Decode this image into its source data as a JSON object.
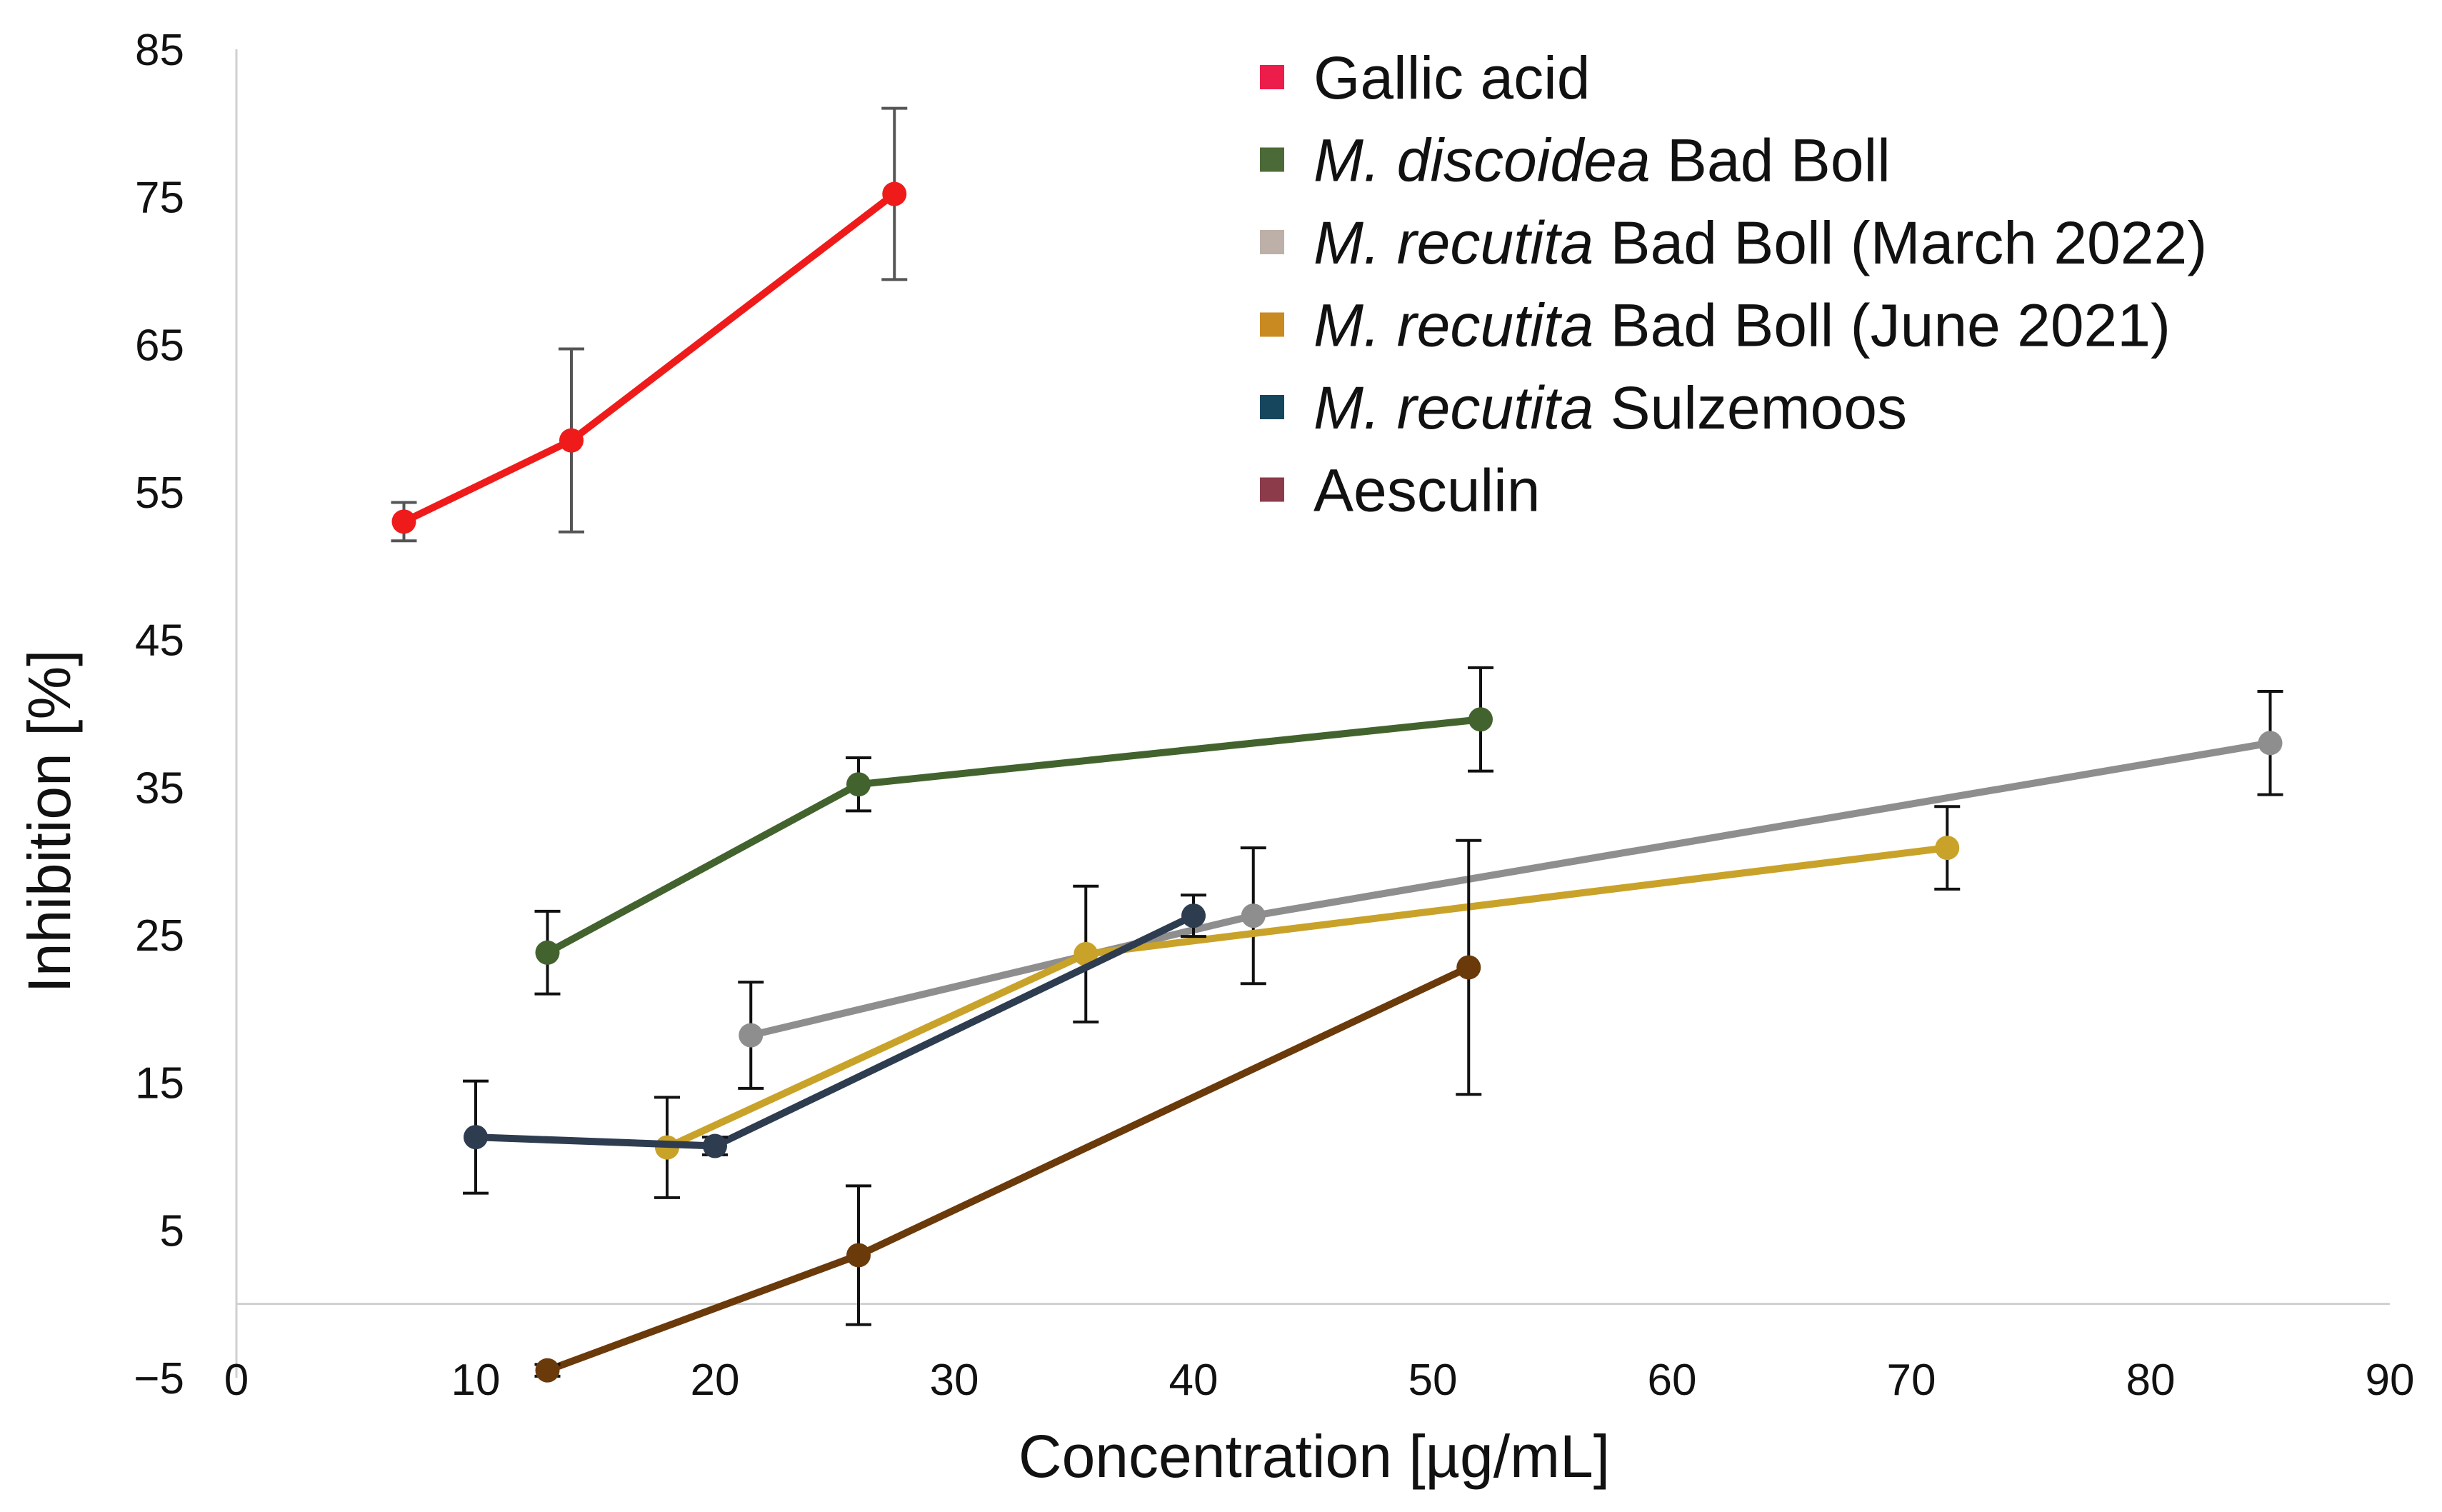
{
  "chart_data": {
    "type": "line",
    "title": "",
    "xlabel": "Concentration [µg/mL]",
    "ylabel": "Inhibition [%]",
    "xlim": [
      0,
      90
    ],
    "ylim": [
      -5,
      85
    ],
    "x_ticks": [
      0,
      10,
      20,
      30,
      40,
      50,
      60,
      70,
      80,
      90
    ],
    "y_ticks": [
      -5,
      5,
      15,
      25,
      35,
      45,
      55,
      65,
      75,
      85
    ],
    "y_tick_labels": [
      "−5",
      "5",
      "15",
      "25",
      "35",
      "45",
      "55",
      "65",
      "75",
      "85"
    ],
    "grid": false,
    "legend_position": "top-right",
    "legend": [
      {
        "series_index": 0,
        "label_italic": "",
        "label_rest": "Gallic acid",
        "color": "#ec1c4b"
      },
      {
        "series_index": 1,
        "label_italic": "M. discoidea",
        "label_rest": " Bad Boll",
        "color": "#4c6a37"
      },
      {
        "series_index": 2,
        "label_italic": "M. recutita",
        "label_rest": " Bad Boll (March 2022)",
        "color": "#bcb0a8"
      },
      {
        "series_index": 3,
        "label_italic": "M. recutita",
        "label_rest": " Bad Boll (June 2021)",
        "color": "#c98a22"
      },
      {
        "series_index": 4,
        "label_italic": "M. recutita",
        "label_rest": " Sulzemoos",
        "color": "#16465e"
      },
      {
        "series_index": 5,
        "label_italic": "",
        "label_rest": "Aesculin",
        "color": "#8c3b4a"
      }
    ],
    "series": [
      {
        "name": "Gallic acid",
        "line_color": "#ef1b1b",
        "err_color": "#555555",
        "x": [
          7,
          14,
          27.5
        ],
        "y": [
          53,
          58.5,
          75.2
        ],
        "err": [
          1.3,
          6.2,
          5.8
        ]
      },
      {
        "name": "M. discoidea Bad Boll",
        "line_color": "#43632e",
        "err_color": "#111111",
        "x": [
          13,
          26,
          52
        ],
        "y": [
          23.8,
          35.2,
          39.6
        ],
        "err": [
          2.8,
          1.8,
          3.5
        ]
      },
      {
        "name": "M. recutita Bad Boll (March 2022)",
        "line_color": "#8e8e8e",
        "err_color": "#111111",
        "x": [
          21.5,
          42.5,
          85
        ],
        "y": [
          18.2,
          26.3,
          38
        ],
        "err": [
          3.6,
          4.6,
          3.5
        ]
      },
      {
        "name": "M. recutita Bad Boll (June 2021)",
        "line_color": "#c9a22a",
        "err_color": "#111111",
        "x": [
          18,
          35.5,
          71.5
        ],
        "y": [
          10.6,
          23.7,
          30.9
        ],
        "err": [
          3.4,
          4.6,
          2.8
        ]
      },
      {
        "name": "M. recutita Sulzemoos",
        "line_color": "#2e3c50",
        "err_color": "#111111",
        "x": [
          10,
          20,
          40
        ],
        "y": [
          11.3,
          10.7,
          26.3
        ],
        "err": [
          3.8,
          0.6,
          1.4
        ]
      },
      {
        "name": "Aesculin",
        "line_color": "#6a3a0a",
        "err_color": "#111111",
        "x": [
          13,
          26,
          51.5
        ],
        "y": [
          -4.5,
          3.3,
          22.8
        ],
        "err": [
          0.4,
          4.7,
          8.6
        ]
      }
    ]
  }
}
